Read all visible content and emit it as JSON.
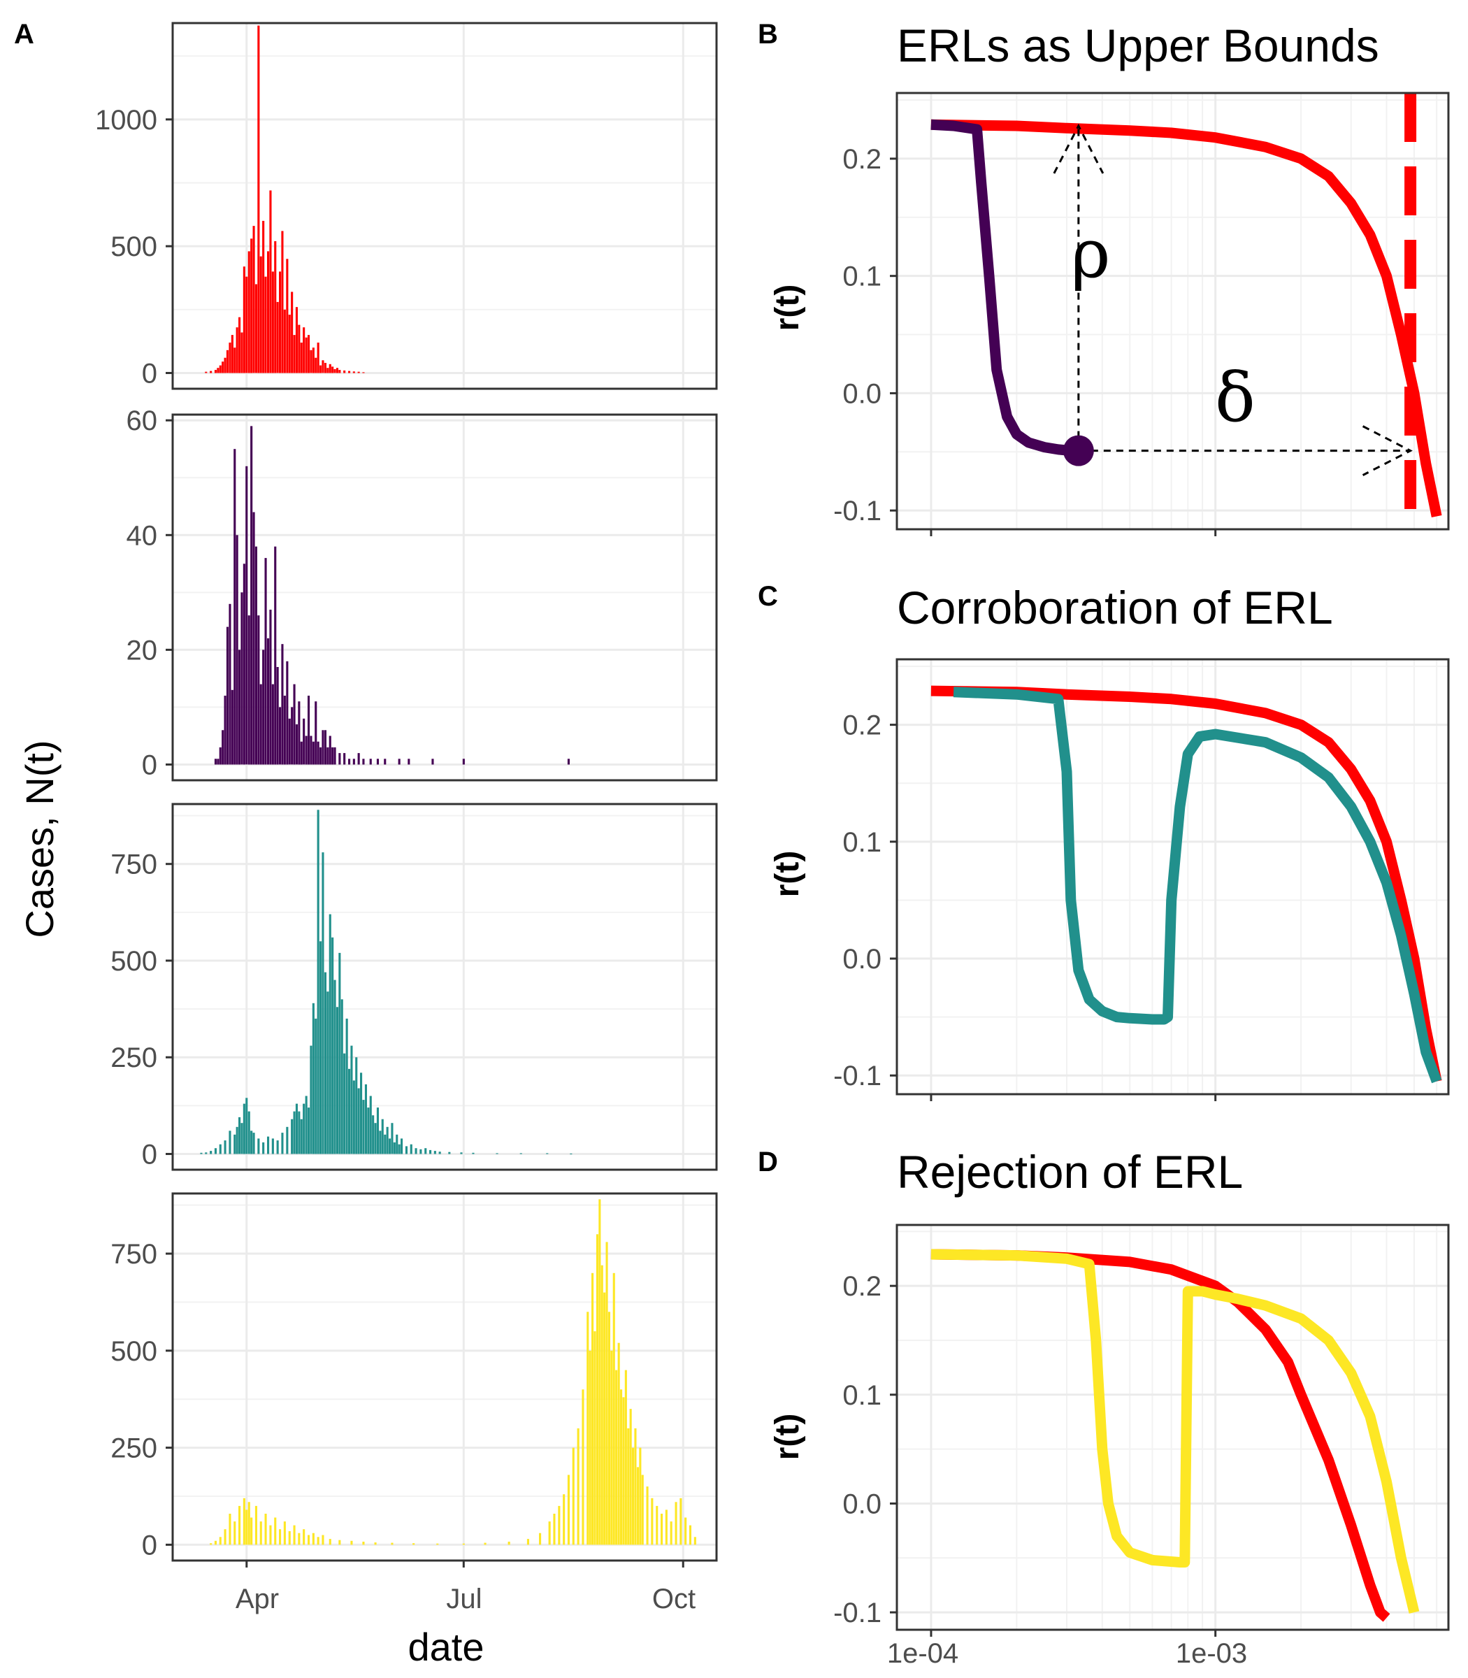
{
  "chart_data": [
    {
      "type": "bar",
      "panel_tag": "A",
      "panel": "A-1",
      "color": "#ff0000",
      "x_ticks": [
        "Apr",
        "Jul",
        "Oct"
      ],
      "ylim": [
        0,
        1380
      ],
      "y_ticks": [
        0,
        500,
        1000
      ],
      "xlabel": "date",
      "ylabel": "Cases, N(t)",
      "x_range": [
        "2020-03-01",
        "2020-10-15"
      ],
      "grid": true,
      "x": [
        "2020-03-15",
        "2020-03-17",
        "2020-03-19",
        "2020-03-20",
        "2020-03-21",
        "2020-03-22",
        "2020-03-23",
        "2020-03-24",
        "2020-03-25",
        "2020-03-26",
        "2020-03-27",
        "2020-03-28",
        "2020-03-29",
        "2020-03-30",
        "2020-03-31",
        "2020-04-01",
        "2020-04-02",
        "2020-04-03",
        "2020-04-04",
        "2020-04-05",
        "2020-04-06",
        "2020-04-07",
        "2020-04-08",
        "2020-04-09",
        "2020-04-10",
        "2020-04-11",
        "2020-04-12",
        "2020-04-13",
        "2020-04-14",
        "2020-04-15",
        "2020-04-16",
        "2020-04-17",
        "2020-04-18",
        "2020-04-19",
        "2020-04-20",
        "2020-04-21",
        "2020-04-22",
        "2020-04-23",
        "2020-04-24",
        "2020-04-25",
        "2020-04-26",
        "2020-04-27",
        "2020-04-28",
        "2020-04-29",
        "2020-04-30",
        "2020-05-01",
        "2020-05-02",
        "2020-05-03",
        "2020-05-04",
        "2020-05-05",
        "2020-05-06",
        "2020-05-07",
        "2020-05-08",
        "2020-05-09",
        "2020-05-10",
        "2020-05-12",
        "2020-05-14",
        "2020-05-16",
        "2020-05-18",
        "2020-05-20"
      ],
      "values": [
        5,
        8,
        12,
        20,
        30,
        45,
        60,
        90,
        120,
        150,
        100,
        180,
        220,
        160,
        420,
        380,
        480,
        530,
        580,
        350,
        1370,
        460,
        600,
        380,
        480,
        720,
        400,
        520,
        280,
        400,
        560,
        250,
        450,
        230,
        320,
        150,
        260,
        190,
        120,
        180,
        140,
        150,
        90,
        100,
        60,
        120,
        30,
        50,
        40,
        20,
        35,
        25,
        15,
        20,
        12,
        10,
        8,
        6,
        5,
        3
      ]
    },
    {
      "type": "bar",
      "panel": "A-2",
      "color": "#440154",
      "ylim": [
        0,
        61
      ],
      "y_ticks": [
        0,
        20,
        40,
        60
      ],
      "x": [
        "2020-03-19",
        "2020-03-20",
        "2020-03-21",
        "2020-03-22",
        "2020-03-23",
        "2020-03-24",
        "2020-03-25",
        "2020-03-26",
        "2020-03-27",
        "2020-03-28",
        "2020-03-29",
        "2020-03-30",
        "2020-03-31",
        "2020-04-01",
        "2020-04-02",
        "2020-04-03",
        "2020-04-04",
        "2020-04-05",
        "2020-04-06",
        "2020-04-07",
        "2020-04-08",
        "2020-04-09",
        "2020-04-10",
        "2020-04-11",
        "2020-04-12",
        "2020-04-13",
        "2020-04-14",
        "2020-04-15",
        "2020-04-16",
        "2020-04-17",
        "2020-04-18",
        "2020-04-19",
        "2020-04-20",
        "2020-04-21",
        "2020-04-22",
        "2020-04-23",
        "2020-04-24",
        "2020-04-25",
        "2020-04-26",
        "2020-04-27",
        "2020-04-28",
        "2020-04-29",
        "2020-04-30",
        "2020-05-01",
        "2020-05-02",
        "2020-05-03",
        "2020-05-04",
        "2020-05-05",
        "2020-05-06",
        "2020-05-07",
        "2020-05-08",
        "2020-05-10",
        "2020-05-12",
        "2020-05-14",
        "2020-05-16",
        "2020-05-18",
        "2020-05-20",
        "2020-05-23",
        "2020-05-26",
        "2020-05-29",
        "2020-06-04",
        "2020-06-08",
        "2020-06-18",
        "2020-07-01",
        "2020-08-14"
      ],
      "values": [
        1,
        1,
        3,
        6,
        12,
        24,
        28,
        13,
        55,
        40,
        20,
        30,
        35,
        52,
        26,
        59,
        44,
        38,
        26,
        14,
        20,
        36,
        22,
        27,
        14,
        38,
        17,
        10,
        21,
        12,
        18,
        8,
        10,
        14,
        7,
        11,
        4,
        8,
        5,
        12,
        5,
        4,
        11,
        4,
        3,
        6,
        6,
        3,
        5,
        3,
        3,
        2,
        2,
        1,
        1,
        2,
        1,
        1,
        1,
        1,
        1,
        1,
        1,
        1,
        1
      ]
    },
    {
      "type": "bar",
      "panel": "A-3",
      "color": "#21908c",
      "ylim": [
        0,
        905
      ],
      "y_ticks": [
        0,
        250,
        500,
        750
      ],
      "x": [
        "2020-03-13",
        "2020-03-15",
        "2020-03-17",
        "2020-03-19",
        "2020-03-21",
        "2020-03-23",
        "2020-03-25",
        "2020-03-27",
        "2020-03-28",
        "2020-03-29",
        "2020-03-30",
        "2020-03-31",
        "2020-04-01",
        "2020-04-02",
        "2020-04-03",
        "2020-04-04",
        "2020-04-06",
        "2020-04-08",
        "2020-04-10",
        "2020-04-12",
        "2020-04-14",
        "2020-04-16",
        "2020-04-18",
        "2020-04-20",
        "2020-04-21",
        "2020-04-22",
        "2020-04-23",
        "2020-04-24",
        "2020-04-25",
        "2020-04-26",
        "2020-04-27",
        "2020-04-28",
        "2020-04-29",
        "2020-04-30",
        "2020-05-01",
        "2020-05-02",
        "2020-05-03",
        "2020-05-04",
        "2020-05-05",
        "2020-05-06",
        "2020-05-07",
        "2020-05-08",
        "2020-05-09",
        "2020-05-10",
        "2020-05-11",
        "2020-05-12",
        "2020-05-13",
        "2020-05-14",
        "2020-05-15",
        "2020-05-16",
        "2020-05-17",
        "2020-05-18",
        "2020-05-19",
        "2020-05-20",
        "2020-05-21",
        "2020-05-22",
        "2020-05-23",
        "2020-05-24",
        "2020-05-25",
        "2020-05-26",
        "2020-05-27",
        "2020-05-28",
        "2020-05-29",
        "2020-05-30",
        "2020-05-31",
        "2020-06-01",
        "2020-06-02",
        "2020-06-03",
        "2020-06-04",
        "2020-06-05",
        "2020-06-07",
        "2020-06-09",
        "2020-06-11",
        "2020-06-13",
        "2020-06-15",
        "2020-06-17",
        "2020-06-19",
        "2020-06-21",
        "2020-06-25",
        "2020-06-30",
        "2020-07-05",
        "2020-07-15",
        "2020-07-25",
        "2020-08-05",
        "2020-08-15"
      ],
      "values": [
        3,
        4,
        8,
        15,
        25,
        35,
        60,
        50,
        70,
        95,
        80,
        130,
        145,
        110,
        60,
        55,
        40,
        30,
        45,
        40,
        35,
        55,
        70,
        90,
        110,
        130,
        110,
        90,
        130,
        150,
        120,
        280,
        390,
        350,
        890,
        550,
        780,
        470,
        420,
        620,
        560,
        450,
        380,
        520,
        400,
        260,
        350,
        220,
        280,
        190,
        250,
        170,
        210,
        140,
        180,
        120,
        150,
        100,
        80,
        120,
        60,
        90,
        50,
        70,
        40,
        80,
        30,
        50,
        25,
        40,
        20,
        25,
        15,
        12,
        15,
        10,
        8,
        6,
        5,
        4,
        3,
        2,
        2,
        2,
        1
      ]
    },
    {
      "type": "bar",
      "panel": "A-4",
      "color": "#fde725",
      "ylim": [
        0,
        905
      ],
      "y_ticks": [
        0,
        250,
        500,
        750
      ],
      "x": [
        "2020-03-17",
        "2020-03-19",
        "2020-03-21",
        "2020-03-23",
        "2020-03-25",
        "2020-03-27",
        "2020-03-29",
        "2020-03-31",
        "2020-04-01",
        "2020-04-02",
        "2020-04-03",
        "2020-04-05",
        "2020-04-07",
        "2020-04-09",
        "2020-04-11",
        "2020-04-13",
        "2020-04-15",
        "2020-04-17",
        "2020-04-19",
        "2020-04-21",
        "2020-04-23",
        "2020-04-25",
        "2020-04-27",
        "2020-04-29",
        "2020-05-01",
        "2020-05-03",
        "2020-05-06",
        "2020-05-10",
        "2020-05-15",
        "2020-05-20",
        "2020-05-25",
        "2020-06-01",
        "2020-06-10",
        "2020-06-20",
        "2020-07-01",
        "2020-07-10",
        "2020-07-20",
        "2020-07-28",
        "2020-08-02",
        "2020-08-06",
        "2020-08-08",
        "2020-08-10",
        "2020-08-12",
        "2020-08-14",
        "2020-08-16",
        "2020-08-18",
        "2020-08-20",
        "2020-08-22",
        "2020-08-23",
        "2020-08-24",
        "2020-08-25",
        "2020-08-26",
        "2020-08-27",
        "2020-08-28",
        "2020-08-29",
        "2020-08-30",
        "2020-08-31",
        "2020-09-01",
        "2020-09-02",
        "2020-09-03",
        "2020-09-04",
        "2020-09-05",
        "2020-09-06",
        "2020-09-07",
        "2020-09-08",
        "2020-09-09",
        "2020-09-10",
        "2020-09-11",
        "2020-09-12",
        "2020-09-13",
        "2020-09-14",
        "2020-09-16",
        "2020-09-18",
        "2020-09-20",
        "2020-09-22",
        "2020-09-24",
        "2020-09-26",
        "2020-09-28",
        "2020-09-30",
        "2020-10-02",
        "2020-10-04",
        "2020-10-06"
      ],
      "values": [
        4,
        10,
        20,
        40,
        80,
        60,
        100,
        120,
        90,
        110,
        70,
        100,
        60,
        80,
        50,
        70,
        40,
        60,
        35,
        50,
        30,
        40,
        25,
        30,
        20,
        25,
        15,
        12,
        10,
        8,
        6,
        5,
        4,
        3,
        3,
        5,
        8,
        15,
        30,
        60,
        80,
        100,
        130,
        180,
        250,
        300,
        400,
        600,
        500,
        700,
        550,
        800,
        890,
        720,
        650,
        780,
        600,
        500,
        700,
        450,
        520,
        400,
        380,
        450,
        300,
        350,
        250,
        300,
        200,
        250,
        180,
        150,
        120,
        100,
        80,
        90,
        60,
        110,
        120,
        70,
        50,
        20
      ]
    },
    {
      "type": "line",
      "panel_tag": "B",
      "panel": "B",
      "title": "ERLs as Upper Bounds",
      "ylabel": "r(t)",
      "xscale": "log",
      "xlim": [
        7.58e-05,
        0.0066
      ],
      "ylim": [
        -0.116,
        0.256
      ],
      "y_ticks": [
        0.2,
        0.1,
        0.0,
        -0.1
      ],
      "y_tick_labels": [
        "0.2",
        "0.1",
        "0.0",
        "-0.1"
      ],
      "x_ticks": [
        0.0001,
        0.001
      ],
      "grid": true,
      "series": [
        {
          "color": "#ff0000",
          "x": [
            0.0001,
            0.0002,
            0.0003,
            0.0005,
            0.0007,
            0.001,
            0.0015,
            0.002,
            0.0025,
            0.003,
            0.0035,
            0.004,
            0.0045,
            0.005,
            0.0055,
            0.006
          ],
          "y": [
            0.229,
            0.228,
            0.226,
            0.224,
            0.222,
            0.218,
            0.21,
            0.2,
            0.185,
            0.162,
            0.135,
            0.1,
            0.05,
            0.0,
            -0.06,
            -0.105
          ]
        },
        {
          "color": "#440154",
          "x": [
            0.0001,
            0.00012,
            0.000145,
            0.00015,
            0.00016,
            0.00017,
            0.000185,
            0.0002,
            0.00022,
            0.00025,
            0.00028,
            0.00031,
            0.00033
          ],
          "y": [
            0.229,
            0.228,
            0.225,
            0.18,
            0.1,
            0.02,
            -0.02,
            -0.035,
            -0.042,
            -0.046,
            -0.048,
            -0.049,
            -0.049
          ]
        }
      ],
      "vline": {
        "x": 0.00485,
        "color": "#ff0000",
        "style": "dashed"
      },
      "point": {
        "x": 0.00033,
        "y": -0.049,
        "color": "#440154"
      },
      "annotations": [
        {
          "label": "ρ",
          "kind": "vertical-arrow",
          "x": 0.00033,
          "y_from": -0.049,
          "y_to": 0.228
        },
        {
          "label": "δ",
          "kind": "horizontal-arrow",
          "y": -0.049,
          "x_from": 0.00033,
          "x_to": 0.00485
        }
      ]
    },
    {
      "type": "line",
      "panel_tag": "C",
      "panel": "C",
      "title": "Corroboration of ERL",
      "ylabel": "r(t)",
      "xscale": "log",
      "xlim": [
        7.58e-05,
        0.0066
      ],
      "ylim": [
        -0.116,
        0.256
      ],
      "y_ticks": [
        0.2,
        0.1,
        0.0,
        -0.1
      ],
      "y_tick_labels": [
        "0.2",
        "0.1",
        "0.0",
        "-0.1"
      ],
      "x_ticks": [
        0.0001,
        0.001
      ],
      "grid": true,
      "series": [
        {
          "color": "#ff0000",
          "x": [
            0.0001,
            0.0002,
            0.0003,
            0.0005,
            0.0007,
            0.001,
            0.0015,
            0.002,
            0.0025,
            0.003,
            0.0035,
            0.004,
            0.0045,
            0.005,
            0.0055,
            0.006
          ],
          "y": [
            0.229,
            0.228,
            0.226,
            0.224,
            0.222,
            0.218,
            0.21,
            0.2,
            0.185,
            0.162,
            0.135,
            0.1,
            0.05,
            0.0,
            -0.06,
            -0.105
          ]
        },
        {
          "color": "#21908c",
          "x": [
            0.00012,
            0.0002,
            0.00028,
            0.0003,
            0.00031,
            0.00033,
            0.00036,
            0.0004,
            0.00045,
            0.0005,
            0.0006,
            0.00066,
            0.00068,
            0.0007,
            0.00075,
            0.0008,
            0.00088,
            0.001,
            0.0015,
            0.002,
            0.0025,
            0.003,
            0.0035,
            0.004,
            0.0045,
            0.005,
            0.0055,
            0.006
          ],
          "y": [
            0.228,
            0.226,
            0.222,
            0.16,
            0.05,
            -0.01,
            -0.035,
            -0.045,
            -0.05,
            -0.051,
            -0.052,
            -0.052,
            -0.05,
            0.05,
            0.13,
            0.175,
            0.19,
            0.192,
            0.185,
            0.172,
            0.155,
            0.13,
            0.1,
            0.065,
            0.02,
            -0.03,
            -0.08,
            -0.105
          ]
        }
      ]
    },
    {
      "type": "line",
      "panel_tag": "D",
      "panel": "D",
      "title": "Rejection of ERL",
      "ylabel": "r(t)",
      "xscale": "log",
      "xlim": [
        7.58e-05,
        0.0066
      ],
      "ylim": [
        -0.116,
        0.256
      ],
      "y_ticks": [
        0.2,
        0.1,
        0.0,
        -0.1
      ],
      "y_tick_labels": [
        "0.2",
        "0.1",
        "0.0",
        "-0.1"
      ],
      "x_ticks": [
        0.0001,
        0.001
      ],
      "x_tick_labels": [
        "1e-04",
        "1e-03"
      ],
      "grid": true,
      "series": [
        {
          "color": "#ff0000",
          "x": [
            0.0001,
            0.0002,
            0.0003,
            0.0005,
            0.0007,
            0.001,
            0.0012,
            0.0015,
            0.0018,
            0.002,
            0.0025,
            0.003,
            0.0035,
            0.0038,
            0.004
          ],
          "y": [
            0.229,
            0.228,
            0.226,
            0.222,
            0.215,
            0.2,
            0.185,
            0.16,
            0.13,
            0.1,
            0.04,
            -0.02,
            -0.075,
            -0.1,
            -0.105
          ]
        },
        {
          "color": "#fde725",
          "x": [
            0.0001,
            0.0002,
            0.0003,
            0.00036,
            0.00038,
            0.0004,
            0.00042,
            0.00045,
            0.0005,
            0.0006,
            0.00075,
            0.00078,
            0.0008,
            0.0009,
            0.001,
            0.0012,
            0.0015,
            0.002,
            0.0025,
            0.003,
            0.0035,
            0.004,
            0.0045,
            0.005
          ],
          "y": [
            0.229,
            0.228,
            0.225,
            0.22,
            0.15,
            0.05,
            0.0,
            -0.03,
            -0.045,
            -0.052,
            -0.054,
            -0.054,
            0.195,
            0.195,
            0.192,
            0.188,
            0.182,
            0.17,
            0.15,
            0.12,
            0.08,
            0.02,
            -0.05,
            -0.1
          ]
        }
      ]
    }
  ]
}
